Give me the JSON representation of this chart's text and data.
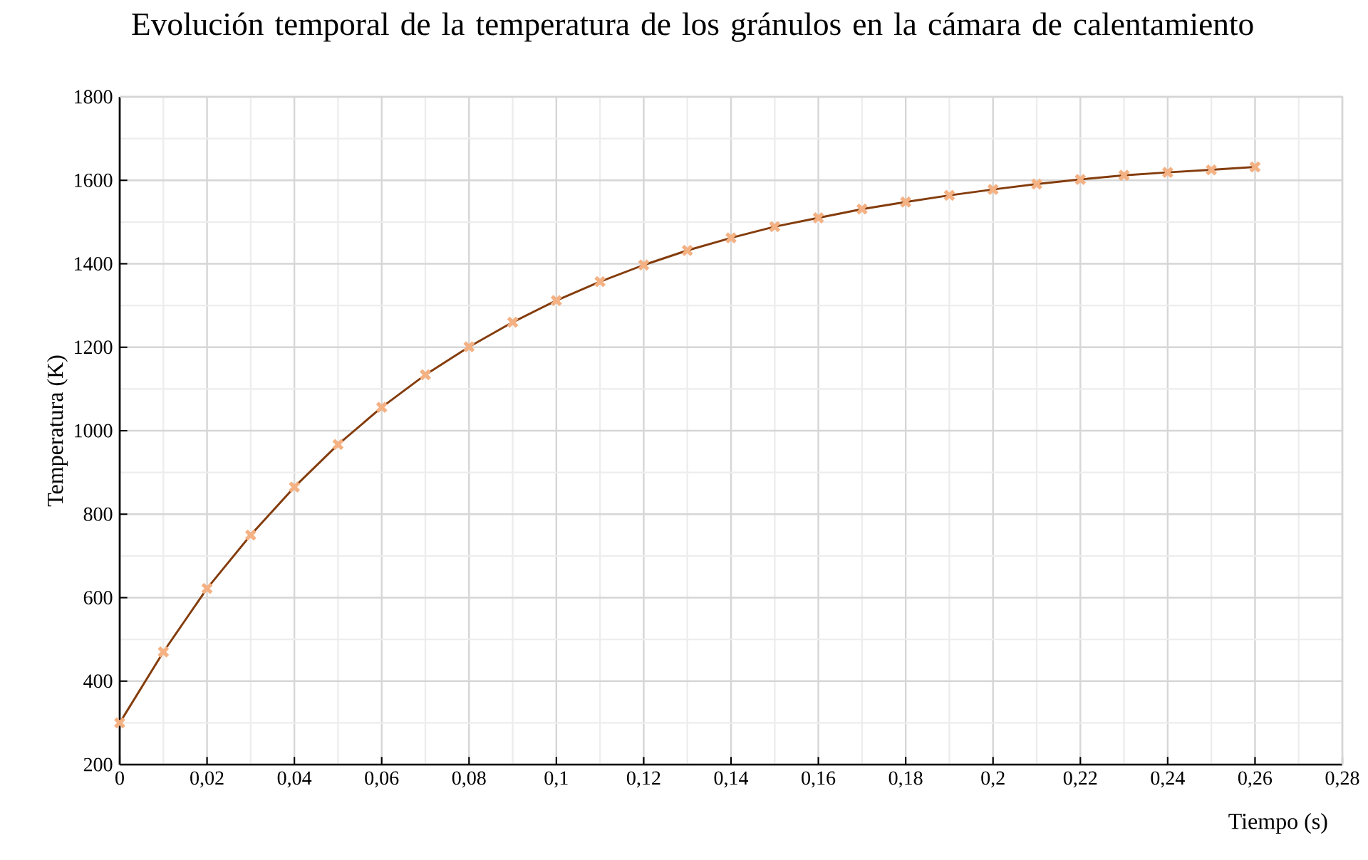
{
  "chart_data": {
    "type": "line",
    "title": "Evolución temporal de la temperatura de los gránulos en la cámara de calentamiento",
    "xlabel": "Tiempo (s)",
    "ylabel": "Temperatura (K)",
    "x": [
      0,
      0.01,
      0.02,
      0.03,
      0.04,
      0.05,
      0.06,
      0.07,
      0.08,
      0.09,
      0.1,
      0.11,
      0.12,
      0.13,
      0.14,
      0.15,
      0.16,
      0.17,
      0.18,
      0.19,
      0.2,
      0.21,
      0.22,
      0.23,
      0.24,
      0.25,
      0.26
    ],
    "series": [
      {
        "color": "#843c0c",
        "values": [
          300,
          470,
          622,
          750,
          865,
          967,
          1056,
          1134,
          1201,
          1260,
          1312,
          1357,
          1397,
          1432,
          1462,
          1489,
          1510,
          1531,
          1548,
          1564,
          1578,
          1591,
          1602,
          1612,
          1619,
          1625,
          1632
        ]
      }
    ],
    "xlim": [
      0,
      0.28
    ],
    "ylim": [
      200,
      1800
    ],
    "xticks": [
      0,
      {
        "value": 0.02,
        "label": "0,02"
      },
      {
        "value": 0.04,
        "label": "0,04"
      },
      {
        "value": 0.06,
        "label": "0,06"
      },
      {
        "value": 0.08,
        "label": "0,08"
      },
      {
        "value": 0.1,
        "label": "0,1"
      },
      {
        "value": 0.12,
        "label": "0,12"
      },
      {
        "value": 0.14,
        "label": "0,14"
      },
      {
        "value": 0.16,
        "label": "0,16"
      },
      {
        "value": 0.18,
        "label": "0,18"
      },
      {
        "value": 0.2,
        "label": "0,2"
      },
      {
        "value": 0.22,
        "label": "0,22"
      },
      {
        "value": 0.24,
        "label": "0,24"
      },
      {
        "value": 0.26,
        "label": "0,26"
      },
      {
        "value": 0.28,
        "label": "0,28"
      }
    ],
    "yticks": [
      200,
      400,
      600,
      800,
      1000,
      1200,
      1400,
      1600,
      1800
    ],
    "grid": true,
    "marker": "cross",
    "line_style": "solid"
  }
}
